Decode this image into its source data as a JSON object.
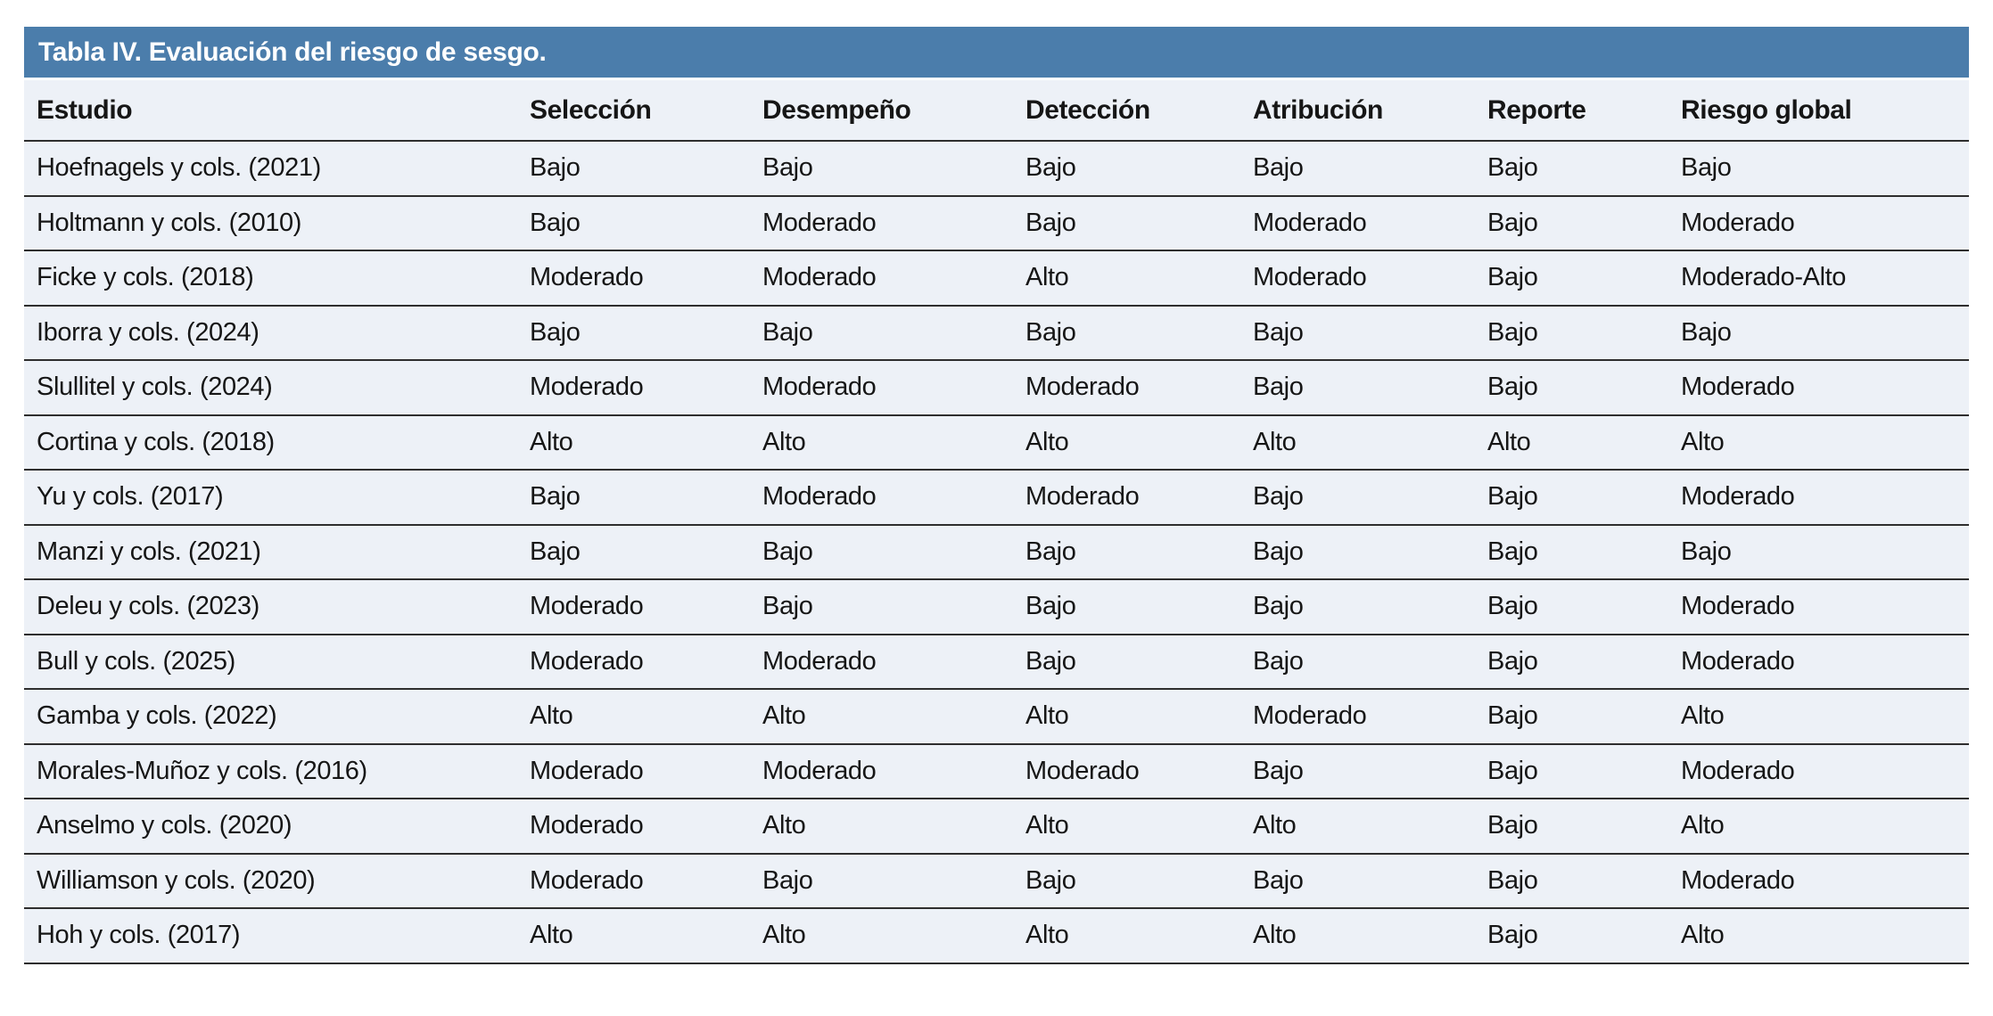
{
  "table": {
    "title": "Tabla IV. Evaluación del riesgo de sesgo.",
    "columns": [
      "Estudio",
      "Selección",
      "Desempeño",
      "Detección",
      "Atribución",
      "Reporte",
      "Riesgo global"
    ],
    "rows": [
      [
        "Hoefnagels y cols. (2021)",
        "Bajo",
        "Bajo",
        "Bajo",
        "Bajo",
        "Bajo",
        "Bajo"
      ],
      [
        "Holtmann y cols. (2010)",
        "Bajo",
        "Moderado",
        "Bajo",
        "Moderado",
        "Bajo",
        "Moderado"
      ],
      [
        "Ficke y cols. (2018)",
        "Moderado",
        "Moderado",
        "Alto",
        "Moderado",
        "Bajo",
        "Moderado-Alto"
      ],
      [
        "Iborra y cols. (2024)",
        "Bajo",
        "Bajo",
        "Bajo",
        "Bajo",
        "Bajo",
        "Bajo"
      ],
      [
        "Slullitel y cols. (2024)",
        "Moderado",
        "Moderado",
        "Moderado",
        "Bajo",
        "Bajo",
        "Moderado"
      ],
      [
        "Cortina y cols. (2018)",
        "Alto",
        "Alto",
        "Alto",
        "Alto",
        "Alto",
        "Alto"
      ],
      [
        "Yu y cols. (2017)",
        "Bajo",
        "Moderado",
        "Moderado",
        "Bajo",
        "Bajo",
        "Moderado"
      ],
      [
        "Manzi y cols. (2021)",
        "Bajo",
        "Bajo",
        "Bajo",
        "Bajo",
        "Bajo",
        "Bajo"
      ],
      [
        "Deleu y cols. (2023)",
        "Moderado",
        "Bajo",
        "Bajo",
        "Bajo",
        "Bajo",
        "Moderado"
      ],
      [
        "Bull y cols. (2025)",
        "Moderado",
        "Moderado",
        "Bajo",
        "Bajo",
        "Bajo",
        "Moderado"
      ],
      [
        "Gamba y cols. (2022)",
        "Alto",
        "Alto",
        "Alto",
        "Moderado",
        "Bajo",
        "Alto"
      ],
      [
        "Morales-Muñoz y cols. (2016)",
        "Moderado",
        "Moderado",
        "Moderado",
        "Bajo",
        "Bajo",
        "Moderado"
      ],
      [
        "Anselmo y cols. (2020)",
        "Moderado",
        "Alto",
        "Alto",
        "Alto",
        "Bajo",
        "Alto"
      ],
      [
        "Williamson y cols. (2020)",
        "Moderado",
        "Bajo",
        "Bajo",
        "Bajo",
        "Bajo",
        "Moderado"
      ],
      [
        "Hoh y cols. (2017)",
        "Alto",
        "Alto",
        "Alto",
        "Alto",
        "Bajo",
        "Alto"
      ]
    ],
    "colors": {
      "title_bar": "#4b7dab",
      "title_text": "#ffffff",
      "row_bg": "#edf1f7",
      "divider": "#2e2e2e",
      "text": "#161616"
    }
  }
}
